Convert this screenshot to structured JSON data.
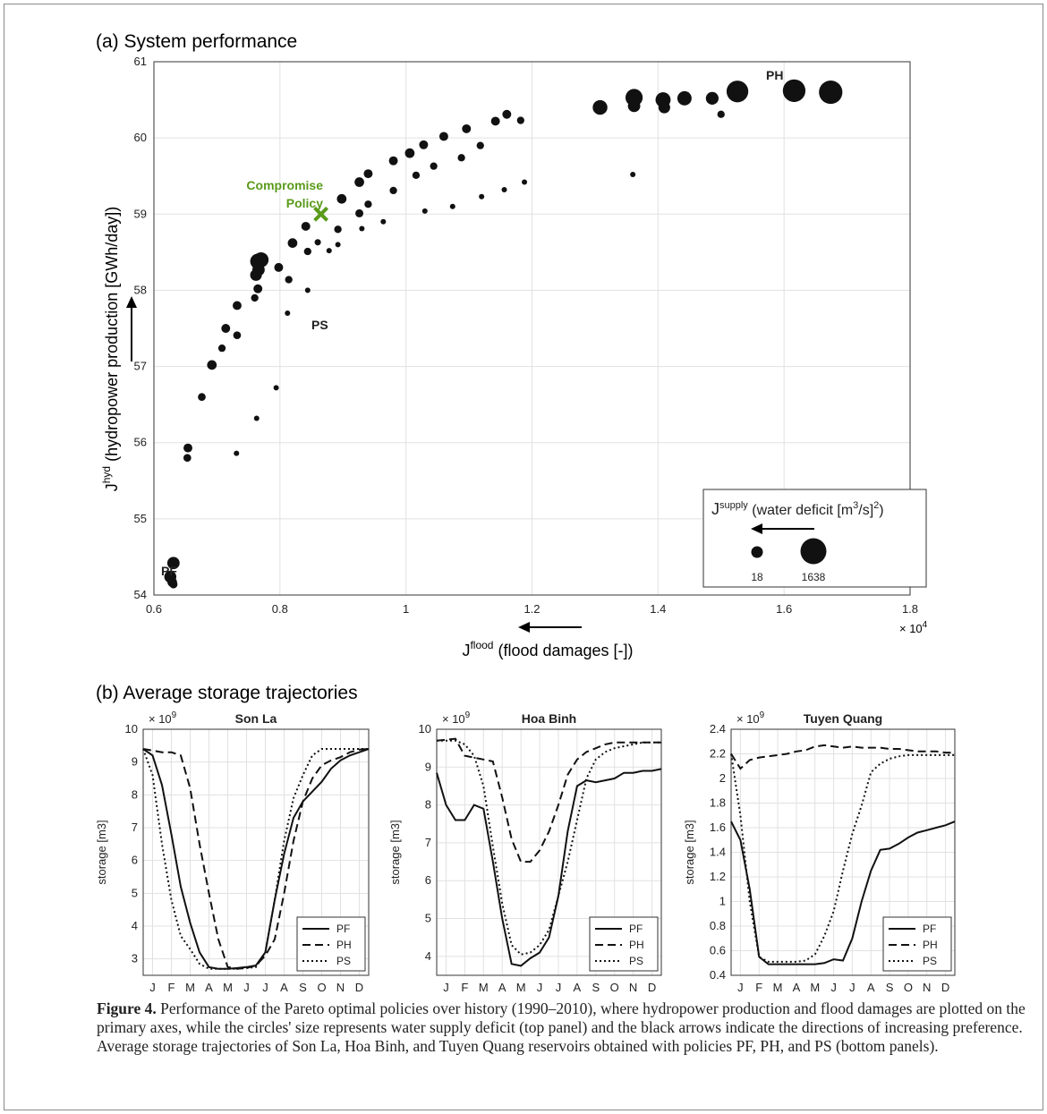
{
  "panel_a": {
    "heading": "(a) System performance",
    "ylabel_main": "J",
    "ylabel_sup": "hyd",
    "ylabel_rest": " (hydropower production [GWh/day])",
    "xlabel_main": "J",
    "xlabel_sup": "flood",
    "xlabel_rest": " (flood damages [-])",
    "x_exponent_base": "× 10",
    "x_exponent_power": "4",
    "annotation_compromise_line1": "Compromise",
    "annotation_compromise_line2": "Policy",
    "annotation_pf": "PF",
    "annotation_ph": "PH",
    "annotation_ps": "PS",
    "legend_title_main": "J",
    "legend_title_sup": "supply",
    "legend_title_rest": " (water deficit [m",
    "legend_title_sup2": "3",
    "legend_title_end": "/s]",
    "legend_title_sup3": "2",
    "legend_title_close": ")",
    "legend_small_label": "18",
    "legend_large_label": "1638",
    "compromise_color": "#5a9a1a"
  },
  "panel_b": {
    "heading": "(b) Average storage trajectories",
    "legend": [
      "PF",
      "PH",
      "PS"
    ],
    "ylabel": "storage [m3]"
  },
  "caption": {
    "label": "Figure 4.",
    "text": " Performance of the Pareto optimal policies over history (1990–2010), where hydropower production and flood damages are plotted on the primary axes, while the circles' size represents water supply deficit (top panel) and the black arrows indicate the directions of increasing preference. Average storage trajectories of Son La, Hoa Binh, and Tuyen Quang reservoirs obtained with policies PF, PH, and PS (bottom panels)."
  },
  "chart_data": [
    {
      "type": "scatter",
      "title": "",
      "xlabel": "J flood (flood damages [-])",
      "ylabel": "J hyd (hydropower production [GWh/day])",
      "xlim": [
        6000,
        18000
      ],
      "ylim": [
        54,
        61
      ],
      "x_ticks": [
        0.6,
        0.8,
        1,
        1.2,
        1.4,
        1.6,
        1.8
      ],
      "y_ticks": [
        54,
        55,
        56,
        57,
        58,
        59,
        60,
        61
      ],
      "grid": true,
      "size_variable": "J supply (water deficit [m3/s]2)",
      "points": [
        {
          "x": 6310,
          "y": 54.42,
          "s": 300
        },
        {
          "x": 6260,
          "y": 54.24,
          "s": 280
        },
        {
          "x": 6290,
          "y": 54.17,
          "s": 160
        },
        {
          "x": 6310,
          "y": 54.14,
          "s": 100
        },
        {
          "x": 6540,
          "y": 55.93,
          "s": 130
        },
        {
          "x": 6530,
          "y": 55.8,
          "s": 90
        },
        {
          "x": 6760,
          "y": 56.6,
          "s": 90
        },
        {
          "x": 6920,
          "y": 57.02,
          "s": 160
        },
        {
          "x": 7080,
          "y": 57.24,
          "s": 80
        },
        {
          "x": 7140,
          "y": 57.5,
          "s": 130
        },
        {
          "x": 7320,
          "y": 57.8,
          "s": 130
        },
        {
          "x": 7320,
          "y": 57.41,
          "s": 90
        },
        {
          "x": 7310,
          "y": 55.86,
          "s": 30
        },
        {
          "x": 7600,
          "y": 57.9,
          "s": 80
        },
        {
          "x": 7620,
          "y": 58.2,
          "s": 260
        },
        {
          "x": 7660,
          "y": 58.27,
          "s": 300
        },
        {
          "x": 7650,
          "y": 58.38,
          "s": 500
        },
        {
          "x": 7700,
          "y": 58.4,
          "s": 480
        },
        {
          "x": 7650,
          "y": 58.02,
          "s": 130
        },
        {
          "x": 7630,
          "y": 56.32,
          "s": 30
        },
        {
          "x": 7980,
          "y": 58.3,
          "s": 130
        },
        {
          "x": 8140,
          "y": 58.14,
          "s": 80
        },
        {
          "x": 8200,
          "y": 58.62,
          "s": 160
        },
        {
          "x": 7940,
          "y": 56.72,
          "s": 30
        },
        {
          "x": 8120,
          "y": 57.7,
          "s": 30
        },
        {
          "x": 8410,
          "y": 58.84,
          "s": 130
        },
        {
          "x": 8440,
          "y": 58.51,
          "s": 80
        },
        {
          "x": 8600,
          "y": 58.63,
          "s": 50
        },
        {
          "x": 8780,
          "y": 58.52,
          "s": 30
        },
        {
          "x": 8440,
          "y": 58.0,
          "s": 30
        },
        {
          "x": 8920,
          "y": 58.6,
          "s": 30
        },
        {
          "x": 8920,
          "y": 58.8,
          "s": 80
        },
        {
          "x": 8980,
          "y": 59.2,
          "s": 160
        },
        {
          "x": 9260,
          "y": 59.42,
          "s": 160
        },
        {
          "x": 9260,
          "y": 59.01,
          "s": 100
        },
        {
          "x": 9300,
          "y": 58.81,
          "s": 30
        },
        {
          "x": 9400,
          "y": 59.53,
          "s": 130
        },
        {
          "x": 9400,
          "y": 59.13,
          "s": 80
        },
        {
          "x": 9640,
          "y": 58.9,
          "s": 30
        },
        {
          "x": 9800,
          "y": 59.7,
          "s": 130
        },
        {
          "x": 9800,
          "y": 59.31,
          "s": 80
        },
        {
          "x": 10060,
          "y": 59.8,
          "s": 160
        },
        {
          "x": 10160,
          "y": 59.51,
          "s": 80
        },
        {
          "x": 10280,
          "y": 59.91,
          "s": 130
        },
        {
          "x": 10300,
          "y": 59.04,
          "s": 30
        },
        {
          "x": 10440,
          "y": 59.63,
          "s": 80
        },
        {
          "x": 10600,
          "y": 60.02,
          "s": 130
        },
        {
          "x": 10740,
          "y": 59.1,
          "s": 30
        },
        {
          "x": 10880,
          "y": 59.74,
          "s": 80
        },
        {
          "x": 10960,
          "y": 60.12,
          "s": 130
        },
        {
          "x": 11180,
          "y": 59.9,
          "s": 80
        },
        {
          "x": 11200,
          "y": 59.23,
          "s": 30
        },
        {
          "x": 11420,
          "y": 60.22,
          "s": 130
        },
        {
          "x": 11560,
          "y": 59.32,
          "s": 30
        },
        {
          "x": 11600,
          "y": 60.31,
          "s": 130
        },
        {
          "x": 11820,
          "y": 60.23,
          "s": 80
        },
        {
          "x": 11880,
          "y": 59.42,
          "s": 30
        },
        {
          "x": 13080,
          "y": 60.4,
          "s": 450
        },
        {
          "x": 13620,
          "y": 60.53,
          "s": 650
        },
        {
          "x": 13620,
          "y": 60.42,
          "s": 300
        },
        {
          "x": 13600,
          "y": 59.52,
          "s": 30
        },
        {
          "x": 14080,
          "y": 60.5,
          "s": 480
        },
        {
          "x": 14100,
          "y": 60.4,
          "s": 260
        },
        {
          "x": 14420,
          "y": 60.52,
          "s": 420
        },
        {
          "x": 14860,
          "y": 60.52,
          "s": 320
        },
        {
          "x": 15000,
          "y": 60.31,
          "s": 80
        },
        {
          "x": 15260,
          "y": 60.61,
          "s": 1100
        },
        {
          "x": 16160,
          "y": 60.62,
          "s": 1200
        },
        {
          "x": 16740,
          "y": 60.6,
          "s": 1300
        }
      ],
      "annotations": [
        {
          "label": "PF",
          "x": 6260,
          "y": 54.24
        },
        {
          "label": "PH",
          "x": 15260,
          "y": 60.61
        },
        {
          "label": "PS",
          "x": 8120,
          "y": 57.7
        },
        {
          "label": "Compromise Policy",
          "x": 8650,
          "y": 59.0,
          "marker": "x"
        }
      ],
      "legend": {
        "position": "bottom-right",
        "sizes": [
          18,
          1638
        ]
      }
    },
    {
      "type": "line",
      "title": "Son La",
      "ylabel": "storage [m3]",
      "multiplier": "× 10^9",
      "x": [
        0,
        0.5,
        1,
        1.5,
        2,
        2.5,
        3,
        3.5,
        4,
        4.5,
        5,
        5.5,
        6,
        6.5,
        7,
        7.5,
        8,
        8.5,
        9,
        9.5,
        10,
        10.5,
        11,
        11.5,
        12
      ],
      "categories": [
        "J",
        "F",
        "M",
        "A",
        "M",
        "J",
        "J",
        "A",
        "S",
        "O",
        "N",
        "D"
      ],
      "ylim": [
        2.5,
        10
      ],
      "y_ticks": [
        3,
        4,
        5,
        6,
        7,
        8,
        9,
        10
      ],
      "grid": true,
      "legend_position": "bottom-right",
      "series": [
        {
          "name": "PF",
          "style": "solid",
          "values": [
            9.4,
            9.2,
            8.3,
            6.8,
            5.2,
            4.1,
            3.2,
            2.75,
            2.7,
            2.7,
            2.72,
            2.75,
            2.8,
            3.2,
            4.8,
            6.2,
            7.3,
            7.8,
            8.1,
            8.4,
            8.8,
            9.05,
            9.2,
            9.3,
            9.4
          ]
        },
        {
          "name": "PH",
          "style": "dashed",
          "values": [
            9.4,
            9.35,
            9.3,
            9.3,
            9.2,
            8.2,
            6.5,
            5.0,
            3.6,
            2.75,
            2.7,
            2.72,
            2.8,
            3.1,
            3.6,
            5.0,
            6.6,
            7.8,
            8.5,
            8.9,
            9.05,
            9.15,
            9.3,
            9.38,
            9.4
          ]
        },
        {
          "name": "PS",
          "style": "dotted",
          "values": [
            9.4,
            8.6,
            6.5,
            4.8,
            3.7,
            3.3,
            2.85,
            2.7,
            2.7,
            2.7,
            2.7,
            2.72,
            2.75,
            3.2,
            4.8,
            6.6,
            7.9,
            8.6,
            9.2,
            9.4,
            9.4,
            9.4,
            9.4,
            9.4,
            9.4
          ]
        }
      ]
    },
    {
      "type": "line",
      "title": "Hoa Binh",
      "ylabel": "storage [m3]",
      "multiplier": "× 10^9",
      "x": [
        0,
        0.5,
        1,
        1.5,
        2,
        2.5,
        3,
        3.5,
        4,
        4.5,
        5,
        5.5,
        6,
        6.5,
        7,
        7.5,
        8,
        8.5,
        9,
        9.5,
        10,
        10.5,
        11,
        11.5,
        12
      ],
      "categories": [
        "J",
        "F",
        "M",
        "A",
        "M",
        "J",
        "J",
        "A",
        "S",
        "O",
        "N",
        "D"
      ],
      "ylim": [
        3.5,
        10
      ],
      "y_ticks": [
        4,
        5,
        6,
        7,
        8,
        9,
        10
      ],
      "grid": true,
      "legend_position": "bottom-right",
      "series": [
        {
          "name": "PF",
          "style": "solid",
          "values": [
            8.85,
            8.0,
            7.6,
            7.6,
            8.0,
            7.9,
            6.5,
            5.0,
            3.8,
            3.75,
            3.95,
            4.1,
            4.5,
            5.6,
            7.3,
            8.5,
            8.65,
            8.6,
            8.65,
            8.7,
            8.85,
            8.85,
            8.9,
            8.9,
            8.95
          ]
        },
        {
          "name": "PH",
          "style": "dashed",
          "values": [
            9.7,
            9.72,
            9.75,
            9.3,
            9.25,
            9.2,
            9.15,
            8.2,
            7.1,
            6.5,
            6.5,
            6.8,
            7.3,
            8.0,
            8.8,
            9.2,
            9.4,
            9.5,
            9.6,
            9.65,
            9.65,
            9.65,
            9.65,
            9.65,
            9.65
          ]
        },
        {
          "name": "PS",
          "style": "dotted",
          "values": [
            9.7,
            9.7,
            9.7,
            9.6,
            9.3,
            8.5,
            6.9,
            5.4,
            4.3,
            4.05,
            4.1,
            4.3,
            4.7,
            5.6,
            6.5,
            7.6,
            8.7,
            9.2,
            9.4,
            9.5,
            9.55,
            9.6,
            9.65,
            9.65,
            9.65
          ]
        }
      ]
    },
    {
      "type": "line",
      "title": "Tuyen Quang",
      "ylabel": "storage [m3]",
      "multiplier": "× 10^9",
      "x": [
        0,
        0.5,
        1,
        1.5,
        2,
        2.5,
        3,
        3.5,
        4,
        4.5,
        5,
        5.5,
        6,
        6.5,
        7,
        7.5,
        8,
        8.5,
        9,
        9.5,
        10,
        10.5,
        11,
        11.5,
        12
      ],
      "categories": [
        "J",
        "F",
        "M",
        "A",
        "M",
        "J",
        "J",
        "A",
        "S",
        "O",
        "N",
        "D"
      ],
      "ylim": [
        0.4,
        2.4
      ],
      "y_ticks": [
        0.4,
        0.6,
        0.8,
        1,
        1.2,
        1.4,
        1.6,
        1.8,
        2,
        2.2,
        2.4
      ],
      "grid": true,
      "legend_position": "bottom-right",
      "series": [
        {
          "name": "PF",
          "style": "solid",
          "values": [
            1.65,
            1.5,
            1.1,
            0.55,
            0.49,
            0.49,
            0.49,
            0.49,
            0.49,
            0.49,
            0.5,
            0.53,
            0.52,
            0.7,
            1.0,
            1.25,
            1.42,
            1.43,
            1.47,
            1.52,
            1.56,
            1.58,
            1.6,
            1.62,
            1.65
          ]
        },
        {
          "name": "PH",
          "style": "dashed",
          "values": [
            2.2,
            2.08,
            2.15,
            2.17,
            2.18,
            2.19,
            2.2,
            2.22,
            2.23,
            2.26,
            2.27,
            2.26,
            2.25,
            2.26,
            2.25,
            2.25,
            2.25,
            2.24,
            2.24,
            2.23,
            2.22,
            2.22,
            2.22,
            2.21,
            2.21
          ]
        },
        {
          "name": "PS",
          "style": "dotted",
          "values": [
            2.2,
            1.7,
            1.0,
            0.55,
            0.51,
            0.51,
            0.51,
            0.51,
            0.52,
            0.57,
            0.72,
            0.92,
            1.25,
            1.55,
            1.78,
            2.05,
            2.12,
            2.16,
            2.18,
            2.19,
            2.19,
            2.19,
            2.19,
            2.19,
            2.19
          ]
        }
      ]
    }
  ]
}
